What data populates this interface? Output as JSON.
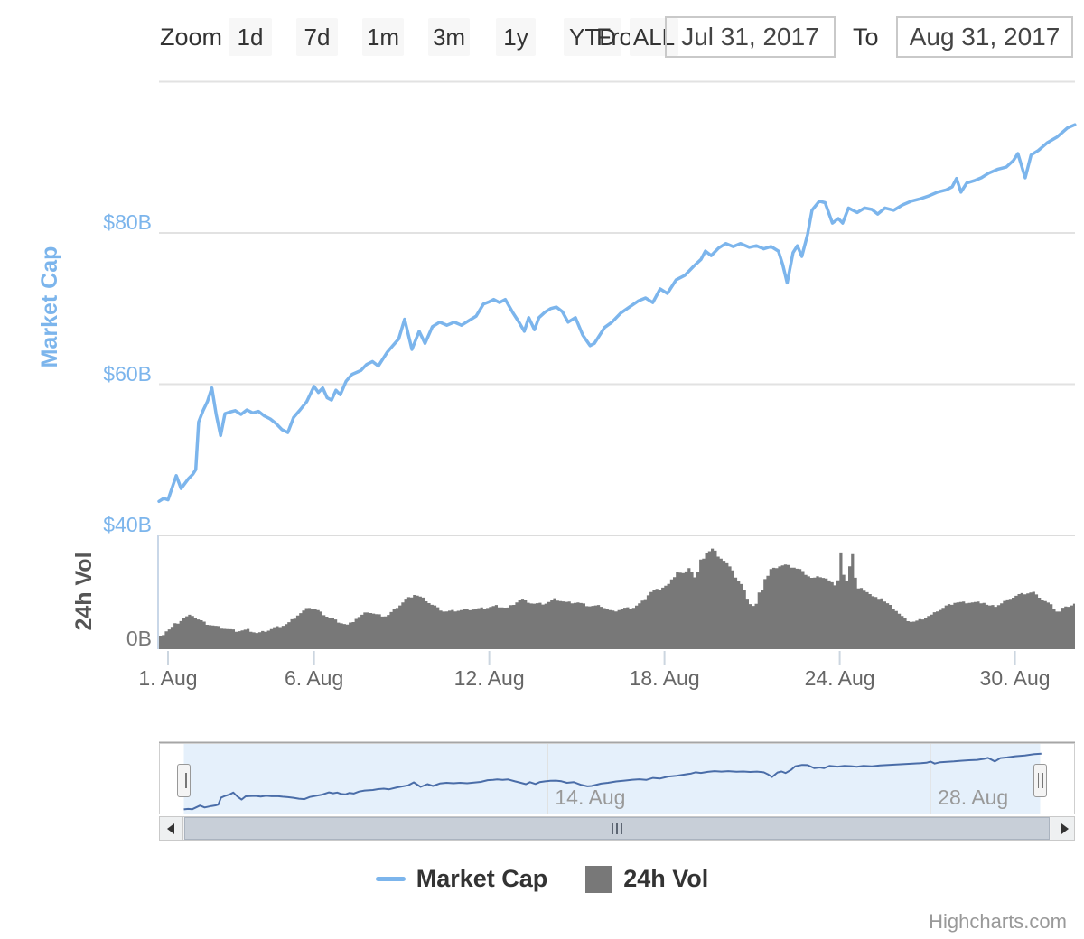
{
  "range_selector": {
    "zoom_label": "Zoom",
    "buttons": [
      "1d",
      "7d",
      "1m",
      "3m",
      "1y",
      "YTD",
      "ALL"
    ],
    "from_label": "From",
    "from_value": "Jul 31, 2017",
    "to_label": "To",
    "to_value": "Aug 31, 2017"
  },
  "legend": {
    "items": [
      {
        "label": "Market Cap",
        "marker": "line",
        "color": "#7cb5ec"
      },
      {
        "label": "24h Vol",
        "marker": "square",
        "color": "#787878"
      }
    ]
  },
  "credits": {
    "text": "Highcharts.com"
  },
  "chart_data": {
    "type": "line",
    "title": "",
    "x_unit": "days (0 = Aug 1 2017 00:00)",
    "x_range": [
      -0.31,
      31.05
    ],
    "x_ticks": [
      {
        "t": 0,
        "label": "1. Aug"
      },
      {
        "t": 5,
        "label": "6. Aug"
      },
      {
        "t": 11,
        "label": "12. Aug"
      },
      {
        "t": 17,
        "label": "18. Aug"
      },
      {
        "t": 23,
        "label": "24. Aug"
      },
      {
        "t": 29,
        "label": "30. Aug"
      }
    ],
    "y_axis_market_cap": {
      "title": "Market Cap",
      "unit": "USD billions",
      "min": 40,
      "max": 100.2,
      "gridlines": [
        40,
        60,
        80,
        100
      ],
      "ticks": [
        {
          "value": 40,
          "label": "$40B"
        },
        {
          "value": 60,
          "label": "$60B"
        },
        {
          "value": 80,
          "label": "$80B"
        }
      ]
    },
    "y_axis_volume": {
      "title": "24h Vol",
      "unit": "USD billions",
      "min": 0,
      "max": 5,
      "ticks": [
        {
          "value": 0,
          "label": "0B"
        }
      ]
    },
    "navigator_ticks": [
      {
        "t": 13,
        "label": "14. Aug"
      },
      {
        "t": 27,
        "label": "28. Aug"
      }
    ],
    "series": [
      {
        "name": "Market Cap",
        "type": "line",
        "color": "#7cb5ec",
        "y_axis": "market_cap",
        "points": [
          [
            -0.31,
            44.5
          ],
          [
            -0.15,
            44.9
          ],
          [
            0,
            44.7
          ],
          [
            0.28,
            47.9
          ],
          [
            0.45,
            46.2
          ],
          [
            0.7,
            47.5
          ],
          [
            0.85,
            48.1
          ],
          [
            0.95,
            48.7
          ],
          [
            1.05,
            55
          ],
          [
            1.2,
            56.5
          ],
          [
            1.35,
            57.7
          ],
          [
            1.5,
            59.5
          ],
          [
            1.65,
            56
          ],
          [
            1.8,
            53.2
          ],
          [
            1.95,
            56.1
          ],
          [
            2.1,
            56.3
          ],
          [
            2.3,
            56.5
          ],
          [
            2.5,
            56
          ],
          [
            2.7,
            56.6
          ],
          [
            2.9,
            56.2
          ],
          [
            3.1,
            56.4
          ],
          [
            3.3,
            55.8
          ],
          [
            3.5,
            55.4
          ],
          [
            3.7,
            54.8
          ],
          [
            3.9,
            54
          ],
          [
            4.1,
            53.6
          ],
          [
            4.3,
            55.6
          ],
          [
            4.5,
            56.5
          ],
          [
            4.75,
            57.7
          ],
          [
            5,
            59.7
          ],
          [
            5.15,
            58.9
          ],
          [
            5.3,
            59.5
          ],
          [
            5.45,
            58.2
          ],
          [
            5.6,
            57.9
          ],
          [
            5.75,
            59.2
          ],
          [
            5.9,
            58.6
          ],
          [
            6.1,
            60.4
          ],
          [
            6.3,
            61.3
          ],
          [
            6.6,
            61.8
          ],
          [
            6.8,
            62.6
          ],
          [
            7,
            63
          ],
          [
            7.2,
            62.4
          ],
          [
            7.5,
            64.2
          ],
          [
            7.7,
            65.1
          ],
          [
            7.9,
            66
          ],
          [
            8.1,
            68.6
          ],
          [
            8.35,
            64.6
          ],
          [
            8.6,
            67
          ],
          [
            8.8,
            65.4
          ],
          [
            9.05,
            67.6
          ],
          [
            9.3,
            68.2
          ],
          [
            9.55,
            67.8
          ],
          [
            9.8,
            68.2
          ],
          [
            10.05,
            67.8
          ],
          [
            10.3,
            68.4
          ],
          [
            10.55,
            69
          ],
          [
            10.8,
            70.6
          ],
          [
            11,
            70.9
          ],
          [
            11.15,
            71.2
          ],
          [
            11.35,
            70.8
          ],
          [
            11.55,
            71.2
          ],
          [
            11.8,
            69.5
          ],
          [
            12,
            68.3
          ],
          [
            12.2,
            67
          ],
          [
            12.35,
            68.8
          ],
          [
            12.55,
            67.2
          ],
          [
            12.7,
            68.8
          ],
          [
            12.9,
            69.5
          ],
          [
            13.1,
            70
          ],
          [
            13.3,
            70.2
          ],
          [
            13.5,
            69.6
          ],
          [
            13.7,
            68.2
          ],
          [
            13.95,
            68.8
          ],
          [
            14.2,
            66.5
          ],
          [
            14.45,
            65.1
          ],
          [
            14.6,
            65.4
          ],
          [
            14.75,
            66.3
          ],
          [
            14.95,
            67.5
          ],
          [
            15.2,
            68.2
          ],
          [
            15.5,
            69.4
          ],
          [
            15.8,
            70.2
          ],
          [
            16.1,
            71
          ],
          [
            16.35,
            71.4
          ],
          [
            16.6,
            70.8
          ],
          [
            16.85,
            72.6
          ],
          [
            17.1,
            72
          ],
          [
            17.4,
            73.8
          ],
          [
            17.7,
            74.4
          ],
          [
            18,
            75.6
          ],
          [
            18.25,
            76.5
          ],
          [
            18.4,
            77.6
          ],
          [
            18.6,
            77
          ],
          [
            18.85,
            78
          ],
          [
            19.1,
            78.6
          ],
          [
            19.35,
            78.2
          ],
          [
            19.6,
            78.6
          ],
          [
            19.9,
            78.1
          ],
          [
            20.15,
            78.3
          ],
          [
            20.4,
            77.9
          ],
          [
            20.65,
            78.2
          ],
          [
            20.9,
            77.6
          ],
          [
            21.05,
            75.8
          ],
          [
            21.2,
            73.4
          ],
          [
            21.4,
            77.4
          ],
          [
            21.55,
            78.3
          ],
          [
            21.7,
            76.9
          ],
          [
            21.9,
            79.8
          ],
          [
            22.05,
            83
          ],
          [
            22.3,
            84.2
          ],
          [
            22.5,
            84
          ],
          [
            22.75,
            81.3
          ],
          [
            22.95,
            81.9
          ],
          [
            23.1,
            81.3
          ],
          [
            23.3,
            83.3
          ],
          [
            23.6,
            82.7
          ],
          [
            23.85,
            83.3
          ],
          [
            24.1,
            83.1
          ],
          [
            24.3,
            82.5
          ],
          [
            24.55,
            83.3
          ],
          [
            24.85,
            83
          ],
          [
            25.15,
            83.7
          ],
          [
            25.45,
            84.2
          ],
          [
            25.75,
            84.5
          ],
          [
            26.05,
            84.9
          ],
          [
            26.35,
            85.4
          ],
          [
            26.65,
            85.7
          ],
          [
            26.85,
            86.1
          ],
          [
            27,
            87.2
          ],
          [
            27.15,
            85.4
          ],
          [
            27.35,
            86.6
          ],
          [
            27.6,
            86.9
          ],
          [
            27.85,
            87.3
          ],
          [
            28.1,
            87.9
          ],
          [
            28.4,
            88.4
          ],
          [
            28.7,
            88.7
          ],
          [
            28.95,
            89.6
          ],
          [
            29.1,
            90.5
          ],
          [
            29.35,
            87.3
          ],
          [
            29.55,
            90.3
          ],
          [
            29.8,
            90.9
          ],
          [
            30.1,
            91.9
          ],
          [
            30.45,
            92.7
          ],
          [
            30.8,
            93.9
          ],
          [
            31.05,
            94.3
          ]
        ]
      },
      {
        "name": "24h Vol",
        "type": "column",
        "color": "#787878",
        "y_axis": "volume",
        "points": [
          [
            -0.31,
            0.5
          ],
          [
            -0.03,
            0.8
          ],
          [
            0.28,
            1.1
          ],
          [
            0.59,
            1.4
          ],
          [
            0.8,
            1.5
          ],
          [
            1.11,
            1.25
          ],
          [
            1.36,
            1.1
          ],
          [
            1.67,
            1
          ],
          [
            1.98,
            0.9
          ],
          [
            2.35,
            0.8
          ],
          [
            2.75,
            0.85
          ],
          [
            3.06,
            0.7
          ],
          [
            3.37,
            0.8
          ],
          [
            3.68,
            0.95
          ],
          [
            4.08,
            1.1
          ],
          [
            4.45,
            1.5
          ],
          [
            4.83,
            1.85
          ],
          [
            5.13,
            1.7
          ],
          [
            5.44,
            1.45
          ],
          [
            5.85,
            1.2
          ],
          [
            6.16,
            1.05
          ],
          [
            6.46,
            1.35
          ],
          [
            6.84,
            1.65
          ],
          [
            7.18,
            1.5
          ],
          [
            7.49,
            1.45
          ],
          [
            7.86,
            1.85
          ],
          [
            8.17,
            2.2
          ],
          [
            8.47,
            2.4
          ],
          [
            8.78,
            2.2
          ],
          [
            9.09,
            1.9
          ],
          [
            9.47,
            1.65
          ],
          [
            9.87,
            1.7
          ],
          [
            10.33,
            1.75
          ],
          [
            10.8,
            1.8
          ],
          [
            11.26,
            1.9
          ],
          [
            11.63,
            1.8
          ],
          [
            12.09,
            2.2
          ],
          [
            12.5,
            2
          ],
          [
            12.9,
            2
          ],
          [
            13.27,
            2.2
          ],
          [
            13.67,
            2.05
          ],
          [
            14.04,
            2.05
          ],
          [
            14.41,
            1.9
          ],
          [
            14.82,
            1.9
          ],
          [
            15.22,
            1.65
          ],
          [
            15.59,
            1.8
          ],
          [
            15.9,
            1.8
          ],
          [
            16.21,
            2.05
          ],
          [
            16.52,
            2.5
          ],
          [
            16.83,
            2.65
          ],
          [
            17.14,
            2.85
          ],
          [
            17.45,
            3.4
          ],
          [
            17.69,
            3.3
          ],
          [
            17.88,
            3.6
          ],
          [
            18.06,
            3.1
          ],
          [
            18.28,
            3.9
          ],
          [
            18.46,
            4.25
          ],
          [
            18.68,
            4.4
          ],
          [
            18.9,
            4
          ],
          [
            19.08,
            3.85
          ],
          [
            19.3,
            3.5
          ],
          [
            19.49,
            3.05
          ],
          [
            19.67,
            2.8
          ],
          [
            19.92,
            2
          ],
          [
            20.1,
            1.85
          ],
          [
            20.29,
            2.45
          ],
          [
            20.47,
            3.1
          ],
          [
            20.69,
            3.5
          ],
          [
            20.91,
            3.65
          ],
          [
            21.15,
            3.7
          ],
          [
            21.4,
            3.6
          ],
          [
            21.62,
            3.5
          ],
          [
            21.84,
            3.3
          ],
          [
            22.08,
            3.1
          ],
          [
            22.33,
            3.2
          ],
          [
            22.55,
            3.1
          ],
          [
            22.73,
            2.9
          ],
          [
            22.92,
            2.8
          ],
          [
            23.04,
            4.25
          ],
          [
            23.2,
            2.65
          ],
          [
            23.41,
            4.2
          ],
          [
            23.6,
            2.65
          ],
          [
            23.79,
            2.65
          ],
          [
            23.97,
            2.5
          ],
          [
            24.19,
            2.25
          ],
          [
            24.4,
            2.25
          ],
          [
            24.62,
            2
          ],
          [
            24.87,
            1.8
          ],
          [
            25.08,
            1.5
          ],
          [
            25.27,
            1.3
          ],
          [
            25.49,
            1.2
          ],
          [
            25.7,
            1.25
          ],
          [
            25.92,
            1.4
          ],
          [
            26.14,
            1.5
          ],
          [
            26.38,
            1.7
          ],
          [
            26.66,
            1.9
          ],
          [
            26.97,
            2.05
          ],
          [
            27.28,
            2.05
          ],
          [
            27.59,
            2.05
          ],
          [
            27.9,
            2.05
          ],
          [
            28.11,
            1.9
          ],
          [
            28.36,
            1.9
          ],
          [
            28.67,
            2.1
          ],
          [
            28.89,
            2.25
          ],
          [
            29.13,
            2.4
          ],
          [
            29.35,
            2.45
          ],
          [
            29.6,
            2.5
          ],
          [
            29.81,
            2.3
          ],
          [
            30.06,
            2.1
          ],
          [
            30.28,
            1.9
          ],
          [
            30.49,
            1.6
          ],
          [
            30.68,
            1.8
          ],
          [
            30.87,
            1.9
          ],
          [
            31.05,
            2
          ]
        ]
      }
    ],
    "legend_position": "bottom-center",
    "grid": true
  }
}
